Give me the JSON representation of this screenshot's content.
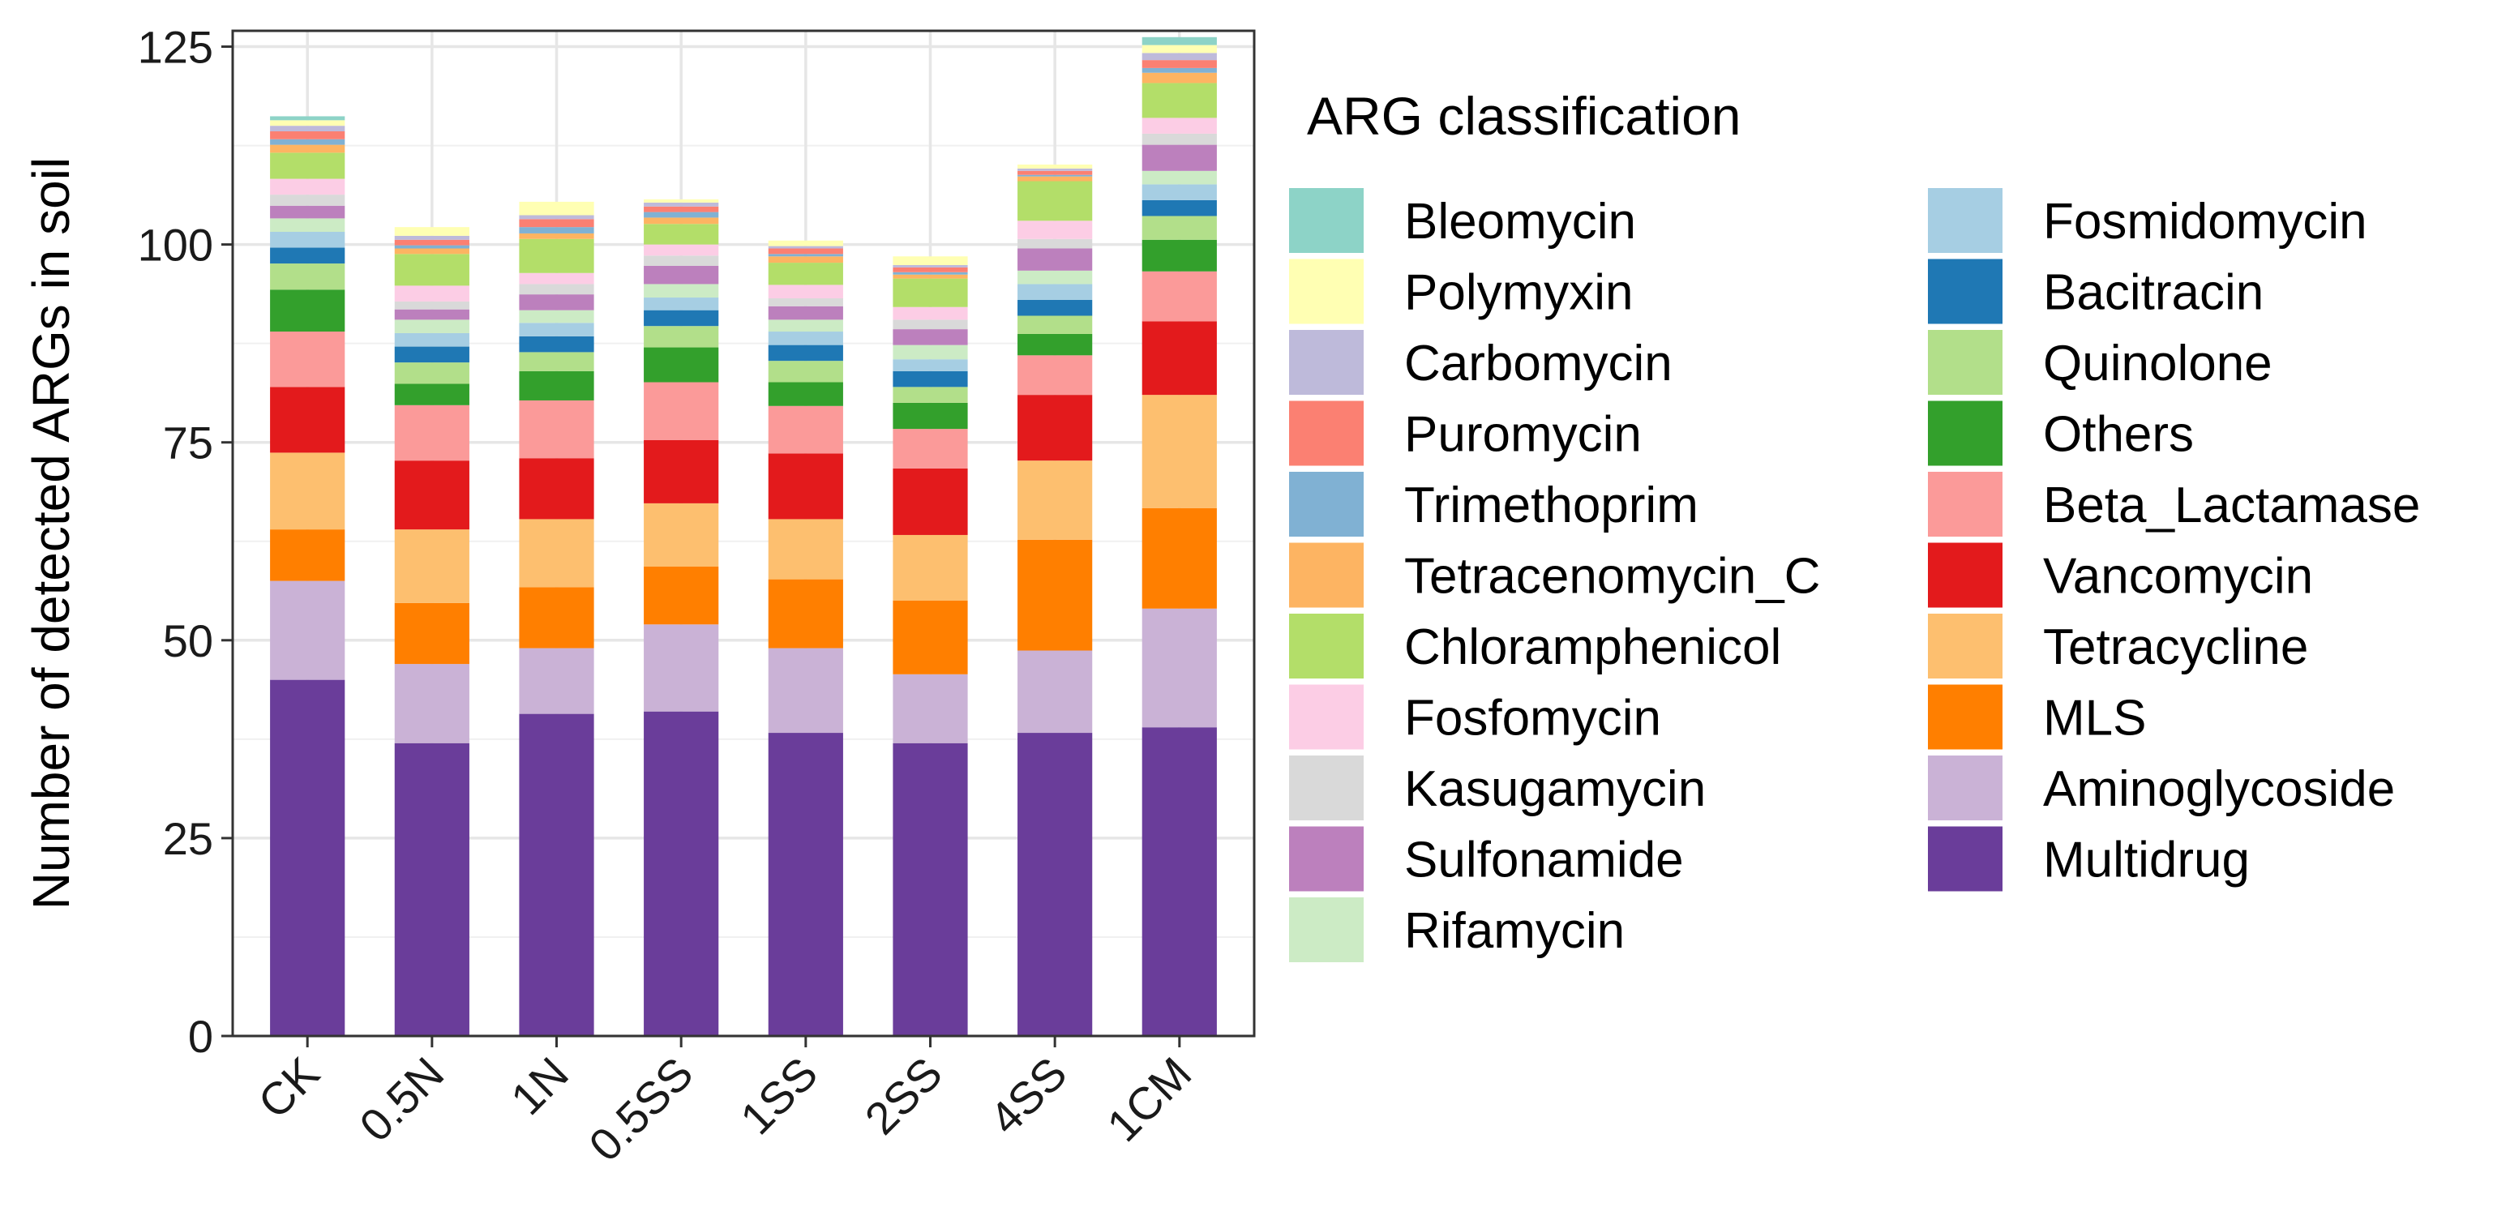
{
  "chart_data": {
    "type": "bar",
    "stacked": true,
    "title": "",
    "xlabel": "",
    "ylabel": "Number of detected ARGs in soil",
    "ylim": [
      0,
      127
    ],
    "yticks": [
      0,
      25,
      50,
      75,
      100,
      125
    ],
    "grid": true,
    "legend_position": "right",
    "legend_title": "ARG classification",
    "categories": [
      "CK",
      "0.5N",
      "1N",
      "0.5SS",
      "1SS",
      "2SS",
      "4SS",
      "1CM"
    ],
    "series": [
      {
        "name": "Multidrug",
        "color": "#6A3D9A",
        "values": [
          45,
          37,
          40.7,
          41,
          38.3,
          37,
          38.3,
          39
        ]
      },
      {
        "name": "Aminoglycoside",
        "color": "#CAB2D6",
        "values": [
          12.5,
          10,
          8.3,
          11,
          10.7,
          8.7,
          10.4,
          15
        ]
      },
      {
        "name": "MLS",
        "color": "#FF7F00",
        "values": [
          6.5,
          7.7,
          7.7,
          7.3,
          8.7,
          9.3,
          14,
          12.7
        ]
      },
      {
        "name": "Tetracycline",
        "color": "#FDBF6F",
        "values": [
          9.7,
          9.3,
          8.6,
          8,
          7.6,
          8.3,
          10,
          14.3
        ]
      },
      {
        "name": "Vancomycin",
        "color": "#E31A1C",
        "values": [
          8.3,
          8.7,
          7.7,
          8,
          8.3,
          8.4,
          8.3,
          9.3
        ]
      },
      {
        "name": "Beta_Lactamase",
        "color": "#FB9A99",
        "values": [
          7,
          7,
          7.3,
          7.3,
          6,
          5,
          5,
          6.3
        ]
      },
      {
        "name": "Others",
        "color": "#33A02C",
        "values": [
          5.3,
          2.7,
          3.7,
          4.4,
          3,
          3.3,
          2.7,
          4
        ]
      },
      {
        "name": "Quinolone",
        "color": "#B2DF8A",
        "values": [
          3.3,
          2.7,
          2.4,
          2.7,
          2.7,
          2,
          2.3,
          3
        ]
      },
      {
        "name": "Bacitracin",
        "color": "#1F78B4",
        "values": [
          2,
          2,
          2,
          2,
          2,
          2,
          2,
          2
        ]
      },
      {
        "name": "Fosmidomycin",
        "color": "#A6CEE3",
        "values": [
          2,
          1.7,
          1.7,
          1.6,
          1.7,
          1.5,
          2,
          2
        ]
      },
      {
        "name": "Rifamycin",
        "color": "#CCEBC5",
        "values": [
          1.7,
          1.7,
          1.6,
          1.7,
          1.5,
          1.8,
          1.7,
          1.7
        ]
      },
      {
        "name": "Sulfonamide",
        "color": "#BC80BD",
        "values": [
          1.6,
          1.3,
          2,
          2.3,
          1.7,
          2,
          2.8,
          3.3
        ]
      },
      {
        "name": "Kasugamycin",
        "color": "#D9D9D9",
        "values": [
          1.4,
          1,
          1.3,
          1.3,
          1,
          1.2,
          1.2,
          1.4
        ]
      },
      {
        "name": "Fosfomycin",
        "color": "#FCCDE5",
        "values": [
          2,
          2,
          1.4,
          1.4,
          1.7,
          1.6,
          2.3,
          2
        ]
      },
      {
        "name": "Chloramphenicol",
        "color": "#B3DE69",
        "values": [
          3.3,
          4,
          4.3,
          2.6,
          2.8,
          3.6,
          5,
          4.4
        ]
      },
      {
        "name": "Tetracenomycin_C",
        "color": "#FDB462",
        "values": [
          1,
          0.7,
          0.7,
          0.8,
          0.8,
          0.5,
          0.6,
          1.3
        ]
      },
      {
        "name": "Trimethoprim",
        "color": "#80B1D3",
        "values": [
          0.7,
          0.4,
          0.8,
          0.7,
          0.3,
          0.3,
          0.2,
          0.6
        ]
      },
      {
        "name": "Puromycin",
        "color": "#FB8072",
        "values": [
          1,
          0.7,
          1,
          0.7,
          0.7,
          0.6,
          0.5,
          1
        ]
      },
      {
        "name": "Carbomycin",
        "color": "#BEBADA",
        "values": [
          0.7,
          0.5,
          0.5,
          0.5,
          0.3,
          0.3,
          0.3,
          0.9
        ]
      },
      {
        "name": "Polymyxin",
        "color": "#FFFFB3",
        "values": [
          0.7,
          1.1,
          1.7,
          0.4,
          0.7,
          1.1,
          0.5,
          1
        ]
      },
      {
        "name": "Bleomycin",
        "color": "#8DD3C7",
        "values": [
          0.5,
          0,
          0,
          0,
          0,
          0,
          0,
          1
        ]
      }
    ],
    "legend_order": [
      [
        "Bleomycin",
        "Polymyxin",
        "Carbomycin",
        "Puromycin",
        "Trimethoprim",
        "Tetracenomycin_C",
        "Chloramphenicol",
        "Fosfomycin",
        "Kasugamycin",
        "Sulfonamide",
        "Rifamycin"
      ],
      [
        "Fosmidomycin",
        "Bacitracin",
        "Quinolone",
        "Others",
        "Beta_Lactamase",
        "Vancomycin",
        "Tetracycline",
        "MLS",
        "Aminoglycoside",
        "Multidrug"
      ]
    ]
  }
}
